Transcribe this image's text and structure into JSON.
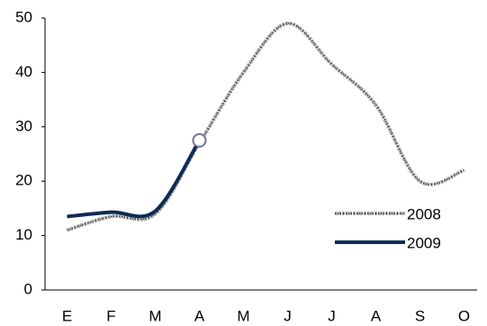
{
  "chart_data": {
    "type": "line",
    "categories": [
      "E",
      "F",
      "M",
      "A",
      "M",
      "J",
      "J",
      "A",
      "S",
      "O"
    ],
    "series": [
      {
        "name": "2008",
        "color": "#a6a6a6",
        "values": [
          11,
          13.5,
          14,
          27,
          40,
          49,
          41.5,
          34,
          20,
          22
        ]
      },
      {
        "name": "2009",
        "color": "#0e2a54",
        "values": [
          13.5,
          14.3,
          14.5,
          27.5,
          null,
          null,
          null,
          null,
          null,
          null
        ]
      }
    ],
    "ylim": [
      0,
      50
    ],
    "yticks": [
      0,
      10,
      20,
      30,
      40,
      50
    ],
    "grid": false,
    "legend": "lower-right"
  }
}
